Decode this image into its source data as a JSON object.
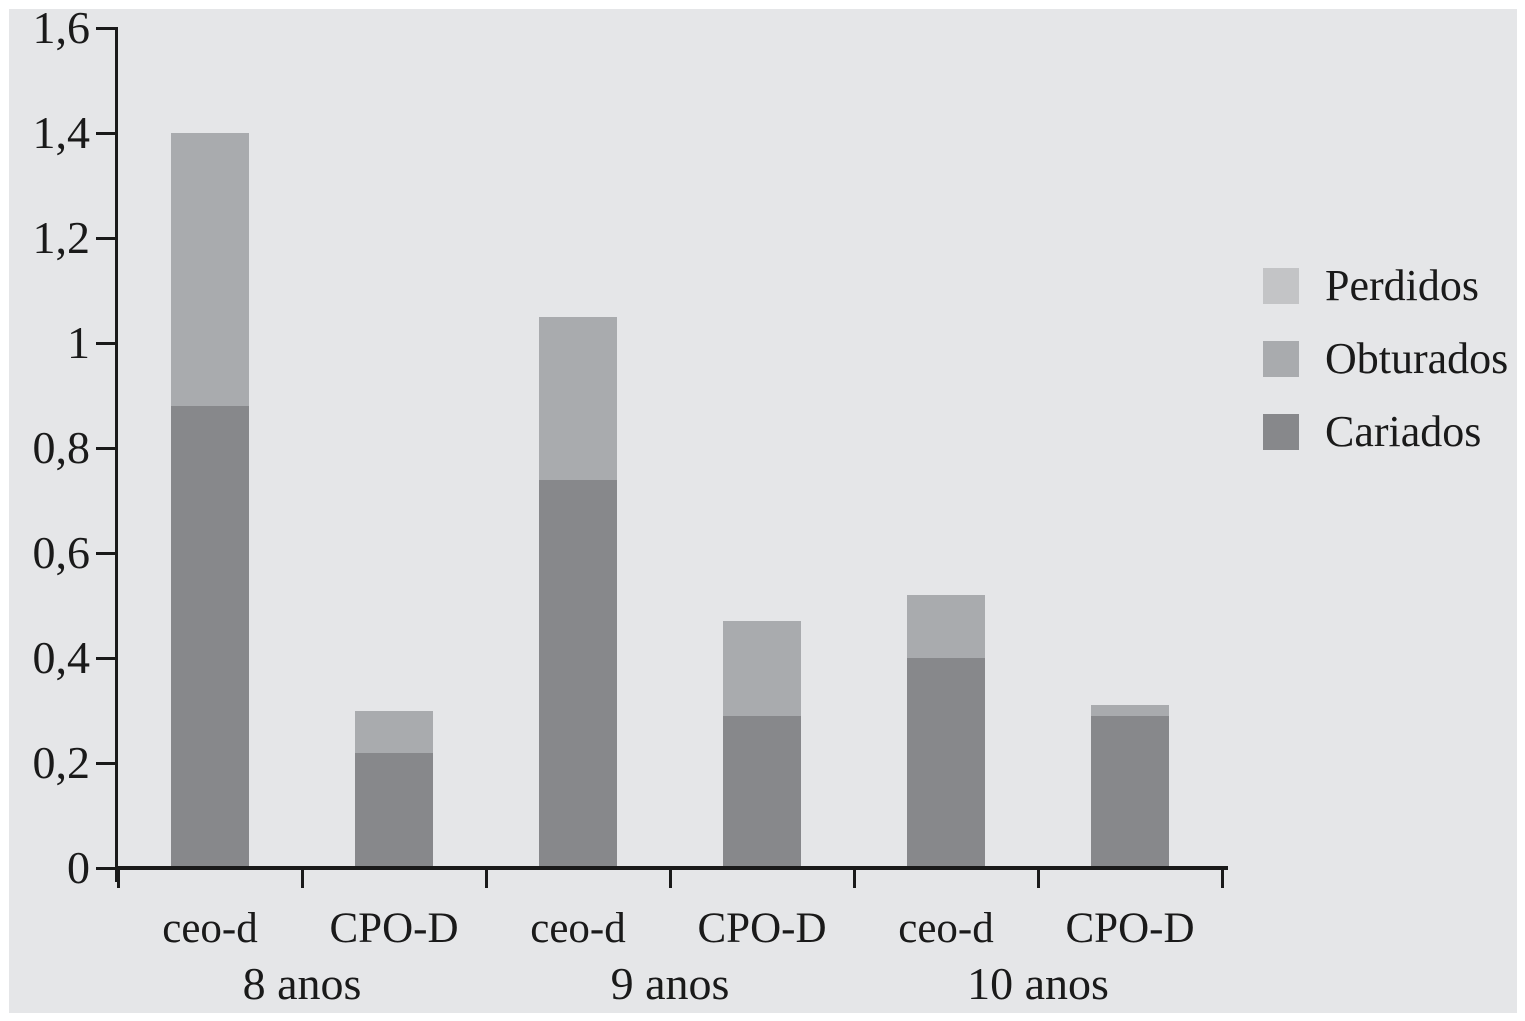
{
  "figure": {
    "panel_background": "#e5e6e8",
    "frame_background": "#ffffff",
    "axis_color": "#1a1a1a",
    "text_color": "#1a1a1a"
  },
  "chart_data": {
    "type": "bar",
    "stacked": true,
    "title": "",
    "xlabel": "",
    "ylabel": "",
    "decimal_separator": ",",
    "grid": false,
    "legend_position": "right",
    "ylim": [
      0,
      1.6
    ],
    "y_ticks": [
      {
        "value": 0,
        "label": "0"
      },
      {
        "value": 0.2,
        "label": "0,2"
      },
      {
        "value": 0.4,
        "label": "0,4"
      },
      {
        "value": 0.6,
        "label": "0,6"
      },
      {
        "value": 0.8,
        "label": "0,8"
      },
      {
        "value": 1,
        "label": "1"
      },
      {
        "value": 1.2,
        "label": "1,2"
      },
      {
        "value": 1.4,
        "label": "1,4"
      },
      {
        "value": 1.6,
        "label": "1,6"
      }
    ],
    "bar_labels": [
      "ceo-d",
      "CPO-D",
      "ceo-d",
      "CPO-D",
      "ceo-d",
      "CPO-D"
    ],
    "groups": [
      {
        "label": "8 anos",
        "bar_indexes": [
          0,
          1
        ]
      },
      {
        "label": "9 anos",
        "bar_indexes": [
          2,
          3
        ]
      },
      {
        "label": "10 anos",
        "bar_indexes": [
          4,
          5
        ]
      }
    ],
    "series": [
      {
        "name": "Perdidos",
        "color": "#c3c4c6",
        "values": [
          0,
          0,
          0,
          0,
          0,
          0
        ]
      },
      {
        "name": "Obturados",
        "color": "#a9abae",
        "values": [
          0.52,
          0.08,
          0.31,
          0.18,
          0.12,
          0.02
        ]
      },
      {
        "name": "Cariados",
        "color": "#87888b",
        "values": [
          0.88,
          0.22,
          0.74,
          0.29,
          0.4,
          0.29
        ]
      }
    ],
    "bar_totals": [
      1.4,
      0.3,
      1.05,
      0.47,
      0.52,
      0.31
    ]
  }
}
